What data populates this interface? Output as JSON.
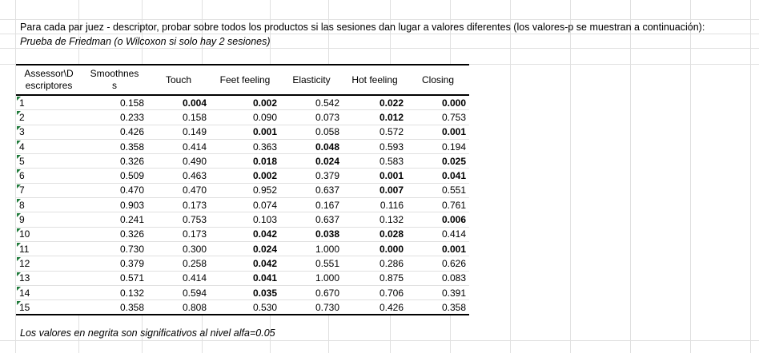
{
  "intro": "Para cada par juez - descriptor, probar sobre todos los productos si las sesiones dan lugar a valores diferentes (los valores-p se muestran a continuación):",
  "test_name": "Prueba de Friedman (o Wilcoxon si solo hay 2 sesiones)",
  "headers": [
    "Assessor\\Descriptores",
    "Smoothness",
    "Touch",
    "Feet feeling",
    "Elasticity",
    "Hot feeling",
    "Closing"
  ],
  "header_display": [
    [
      "Assessor\\D",
      "escriptores"
    ],
    [
      "Smoothnes",
      "s"
    ],
    [
      "Touch"
    ],
    [
      "Feet feeling"
    ],
    [
      "Elasticity"
    ],
    [
      "Hot feeling"
    ],
    [
      "Closing"
    ]
  ],
  "rows": [
    {
      "id": "1",
      "values": [
        "0.158",
        "0.004",
        "0.002",
        "0.542",
        "0.022",
        "0.000"
      ],
      "bold": [
        false,
        true,
        true,
        false,
        true,
        true
      ]
    },
    {
      "id": "2",
      "values": [
        "0.233",
        "0.158",
        "0.090",
        "0.073",
        "0.012",
        "0.753"
      ],
      "bold": [
        false,
        false,
        false,
        false,
        true,
        false
      ]
    },
    {
      "id": "3",
      "values": [
        "0.426",
        "0.149",
        "0.001",
        "0.058",
        "0.572",
        "0.001"
      ],
      "bold": [
        false,
        false,
        true,
        false,
        false,
        true
      ]
    },
    {
      "id": "4",
      "values": [
        "0.358",
        "0.414",
        "0.363",
        "0.048",
        "0.593",
        "0.194"
      ],
      "bold": [
        false,
        false,
        false,
        true,
        false,
        false
      ]
    },
    {
      "id": "5",
      "values": [
        "0.326",
        "0.490",
        "0.018",
        "0.024",
        "0.583",
        "0.025"
      ],
      "bold": [
        false,
        false,
        true,
        true,
        false,
        true
      ]
    },
    {
      "id": "6",
      "values": [
        "0.509",
        "0.463",
        "0.002",
        "0.379",
        "0.001",
        "0.041"
      ],
      "bold": [
        false,
        false,
        true,
        false,
        true,
        true
      ]
    },
    {
      "id": "7",
      "values": [
        "0.470",
        "0.470",
        "0.952",
        "0.637",
        "0.007",
        "0.551"
      ],
      "bold": [
        false,
        false,
        false,
        false,
        true,
        false
      ]
    },
    {
      "id": "8",
      "values": [
        "0.903",
        "0.173",
        "0.074",
        "0.167",
        "0.116",
        "0.761"
      ],
      "bold": [
        false,
        false,
        false,
        false,
        false,
        false
      ]
    },
    {
      "id": "9",
      "values": [
        "0.241",
        "0.753",
        "0.103",
        "0.637",
        "0.132",
        "0.006"
      ],
      "bold": [
        false,
        false,
        false,
        false,
        false,
        true
      ]
    },
    {
      "id": "10",
      "values": [
        "0.326",
        "0.173",
        "0.042",
        "0.038",
        "0.028",
        "0.414"
      ],
      "bold": [
        false,
        false,
        true,
        true,
        true,
        false
      ]
    },
    {
      "id": "11",
      "values": [
        "0.730",
        "0.300",
        "0.024",
        "1.000",
        "0.000",
        "0.001"
      ],
      "bold": [
        false,
        false,
        true,
        false,
        true,
        true
      ]
    },
    {
      "id": "12",
      "values": [
        "0.379",
        "0.258",
        "0.042",
        "0.551",
        "0.286",
        "0.626"
      ],
      "bold": [
        false,
        false,
        true,
        false,
        false,
        false
      ]
    },
    {
      "id": "13",
      "values": [
        "0.571",
        "0.414",
        "0.041",
        "1.000",
        "0.875",
        "0.083"
      ],
      "bold": [
        false,
        false,
        true,
        false,
        false,
        false
      ]
    },
    {
      "id": "14",
      "values": [
        "0.132",
        "0.594",
        "0.035",
        "0.670",
        "0.706",
        "0.391"
      ],
      "bold": [
        false,
        false,
        true,
        false,
        false,
        false
      ]
    },
    {
      "id": "15",
      "values": [
        "0.358",
        "0.808",
        "0.530",
        "0.730",
        "0.426",
        "0.358"
      ],
      "bold": [
        false,
        false,
        false,
        false,
        false,
        false
      ]
    }
  ],
  "footnote": "Los valores en negrita son significativos al nivel alfa=0.05",
  "colors": {
    "gridline": "#e0e0e0",
    "error_flag": "#1f7a3a"
  }
}
